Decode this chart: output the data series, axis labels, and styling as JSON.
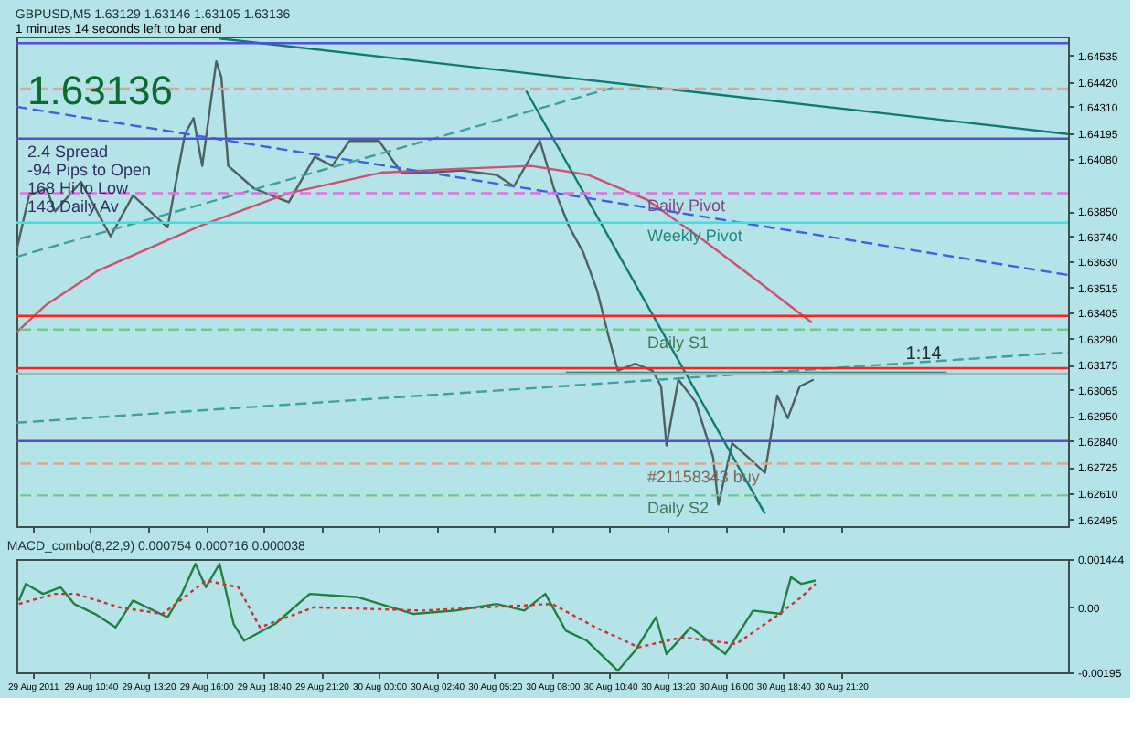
{
  "chart_data": [
    {
      "type": "line",
      "title": "GBPUSD,M5 1.63129 1.63146 1.63105 1.63136",
      "subtitle": "1 minutes 14 seconds left to bar end",
      "xlim": [
        "2011-08-29T07:15",
        "2011-08-31T07:50"
      ],
      "ylim": [
        1.62465,
        1.64619
      ],
      "xticks": [
        {
          "value": "2011-08-29T08:00",
          "label": null
        },
        {
          "value": "2011-08-29T10:40",
          "label": null
        },
        {
          "value": "2011-08-29T13:20",
          "label": null
        },
        {
          "value": "2011-08-29T16:00",
          "label": null
        },
        {
          "value": "2011-08-29T18:40",
          "label": null
        },
        {
          "value": "2011-08-29T21:20",
          "label": null
        },
        {
          "value": "2011-08-30T00:00",
          "label": null
        },
        {
          "value": "2011-08-30T02:40",
          "label": null
        },
        {
          "value": "2011-08-30T05:20",
          "label": null
        },
        {
          "value": "2011-08-30T08:00",
          "label": null
        },
        {
          "value": "2011-08-30T10:40",
          "label": null
        },
        {
          "value": "2011-08-30T13:20",
          "label": null
        },
        {
          "value": "2011-08-30T16:00",
          "label": null
        },
        {
          "value": "2011-08-30T18:40",
          "label": null
        },
        {
          "value": "2011-08-30T21:20",
          "label": null
        }
      ],
      "yticks": [
        1.64535,
        {
          "value": 1.6442,
          "label": "1.64420"
        },
        {
          "value": 1.6431,
          "label": "1.64310"
        },
        1.64195,
        {
          "value": 1.6408,
          "label": "1.64080"
        },
        {
          "value": 1.6385,
          "label": "1.63850"
        },
        {
          "value": 1.6374,
          "label": "1.63740"
        },
        {
          "value": 1.6363,
          "label": "1.63630"
        },
        1.63515,
        1.63405,
        {
          "value": 1.6329,
          "label": "1.63290"
        },
        1.63175,
        1.63065,
        {
          "value": 1.6295,
          "label": "1.62950"
        },
        {
          "value": 1.6284,
          "label": "1.62840"
        },
        1.62725,
        {
          "value": 1.6261,
          "label": "1.62610"
        },
        1.62495
      ],
      "tick_labels": "y",
      "grid": false,
      "series": [
        {
          "color": "#4f6060",
          "x": [
            "2011-08-29T07:17",
            "2011-08-29T07:50",
            "2011-08-29T08:38",
            "2011-08-29T09:02",
            "2011-08-29T10:14",
            "2011-08-29T11:36",
            "2011-08-29T12:38",
            "2011-08-29T14:14",
            "2011-08-29T15:02",
            "2011-08-29T15:26",
            "2011-08-29T15:50",
            "2011-08-29T16:29",
            "2011-08-29T16:43",
            "2011-08-29T17:02",
            "2011-08-29T18:14",
            "2011-08-29T19:50",
            "2011-08-29T21:02",
            "2011-08-29T21:50",
            "2011-08-29T22:38",
            "2011-08-30T00:00",
            "2011-08-30T01:02",
            "2011-08-30T02:14",
            "2011-08-30T03:50",
            "2011-08-30T05:26",
            "2011-08-30T06:14",
            "2011-08-30T07:26",
            "2011-08-30T08:05",
            "2011-08-30T08:48",
            "2011-08-30T09:26",
            "2011-08-30T10:05",
            "2011-08-30T10:38",
            "2011-08-30T11:02",
            "2011-08-30T11:50",
            "2011-08-30T12:38",
            "2011-08-30T13:02",
            "2011-08-30T13:17",
            "2011-08-30T13:50",
            "2011-08-30T14:38",
            "2011-08-30T15:26",
            "2011-08-30T15:41",
            "2011-08-30T16:19",
            "2011-08-30T17:02",
            "2011-08-30T17:50",
            "2011-08-30T18:24",
            "2011-08-30T18:53",
            "2011-08-30T19:26",
            "2011-08-30T20:05"
          ],
          "values": [
            1.6369,
            1.6392,
            1.6395,
            1.6385,
            1.6398,
            1.6374,
            1.6392,
            1.6378,
            1.6419,
            1.6426,
            1.6405,
            1.6451,
            1.6444,
            1.6405,
            1.6395,
            1.6389,
            1.6409,
            1.6405,
            1.6416,
            1.6416,
            1.6402,
            1.6402,
            1.6403,
            1.6401,
            1.6396,
            1.6416,
            1.6395,
            1.6378,
            1.6367,
            1.635,
            1.6329,
            1.6315,
            1.6318,
            1.6315,
            1.6308,
            1.6282,
            1.6311,
            1.6301,
            1.6277,
            1.6256,
            1.6283,
            1.6277,
            1.627,
            1.6304,
            1.6294,
            1.6308,
            1.6311
          ]
        },
        {
          "color": "#d05070",
          "x": [
            "2011-08-29T07:17",
            "2011-08-29T08:38",
            "2011-08-29T11:02",
            "2011-08-29T15:50",
            "2011-08-29T19:50",
            "2011-08-30T00:05",
            "2011-08-30T04:24",
            "2011-08-30T07:02",
            "2011-08-30T09:41",
            "2011-08-30T12:24",
            "2011-08-30T15:02",
            "2011-08-30T17:41",
            "2011-08-30T20:00"
          ],
          "values": [
            1.6332,
            1.6344,
            1.6359,
            1.6379,
            1.6393,
            1.6402,
            1.6404,
            1.6405,
            1.6401,
            1.639,
            1.6372,
            1.6353,
            1.6336
          ]
        },
        {
          "color": "#107a70",
          "x": [
            "2011-08-29T16:38",
            "2011-08-31T07:50"
          ],
          "values": [
            1.6461,
            1.6419
          ]
        },
        {
          "color": "#107a70",
          "x": [
            "2011-08-30T06:48",
            "2011-08-30T17:50"
          ],
          "values": [
            1.6438,
            1.6252
          ]
        },
        {
          "color": "#4060e0",
          "x": [
            "2011-08-29T07:15",
            "2011-08-31T07:50"
          ],
          "values": [
            1.6431,
            1.6357
          ],
          "line_style": "dashed"
        },
        {
          "color": "#40a0a0",
          "x": [
            "2011-08-29T07:15",
            "2011-08-30T11:02"
          ],
          "values": [
            1.6365,
            1.644
          ],
          "line_style": "dashed"
        },
        {
          "color": "#40a0a0",
          "x": [
            "2011-08-29T07:15",
            "2011-08-31T07:50"
          ],
          "values": [
            1.6292,
            1.6323
          ],
          "line_style": "dashed"
        },
        {
          "color": "#107a70",
          "x": [
            "2011-08-30T08:38",
            "2011-08-31T02:14"
          ],
          "values": [
            1.6314,
            1.6314
          ]
        }
      ],
      "ref_lines": [
        {
          "axis": "y",
          "value": 1.6459,
          "color": "#5050d0"
        },
        {
          "axis": "y",
          "value": 1.6439,
          "color": "#d8a890",
          "line_style": "dashed"
        },
        {
          "axis": "y",
          "value": 1.6417,
          "color": "#5050d0"
        },
        {
          "axis": "y",
          "value": 1.6393,
          "label": "Daily Pivot",
          "color": "#e070e0",
          "line_style": "dashed"
        },
        {
          "axis": "y",
          "value": 1.638,
          "label": "Weekly Pivot",
          "color": "#40e0e0"
        },
        {
          "axis": "y",
          "value": 1.6339,
          "color": "#ff2020"
        },
        {
          "axis": "y",
          "value": 1.6333,
          "label": "Daily S1",
          "color": "#70c890",
          "line_style": "dashed"
        },
        {
          "axis": "y",
          "value": 1.6316,
          "color": "#ff2020"
        },
        {
          "axis": "y",
          "value": 1.63136,
          "color": "#a0b8b8"
        },
        {
          "axis": "y",
          "value": 1.6284,
          "color": "#5050d0"
        },
        {
          "axis": "y",
          "value": 1.6274,
          "label": "#21158343 buy",
          "color": "#d8a890",
          "line_style": "dashed"
        },
        {
          "axis": "y",
          "value": 1.626,
          "label": "Daily S2",
          "color": "#70c890",
          "line_style": "dashed"
        }
      ],
      "annotations": [
        "1.63136",
        "2.4 Spread",
        "-94 Pips to Open",
        "168 Hi to Low",
        "143 Daily Av",
        {
          "text": "1:14",
          "x": "2011-08-31T00:00",
          "y": 1.6316
        }
      ]
    },
    {
      "type": "line",
      "title": "MACD_combo(8,22,9) 0.000754 0.000716 0.000038",
      "xlim": [
        "2011-08-29T07:15",
        "2011-08-31T07:50"
      ],
      "ylim": [
        -0.00195,
        0.001444
      ],
      "xticks": [
        {
          "value": "2011-08-29T08:00",
          "label": "29 Aug 2011"
        },
        {
          "value": "2011-08-29T10:40",
          "label": "29 Aug 10:40"
        },
        {
          "value": "2011-08-29T13:20",
          "label": "29 Aug 13:20"
        },
        {
          "value": "2011-08-29T16:00",
          "label": "29 Aug 16:00"
        },
        {
          "value": "2011-08-29T18:40",
          "label": "29 Aug 18:40"
        },
        {
          "value": "2011-08-29T21:20",
          "label": "29 Aug 21:20"
        },
        {
          "value": "2011-08-30T00:00",
          "label": "30 Aug 00:00"
        },
        {
          "value": "2011-08-30T02:40",
          "label": "30 Aug 02:40"
        },
        {
          "value": "2011-08-30T05:20",
          "label": "30 Aug 05:20"
        },
        {
          "value": "2011-08-30T08:00",
          "label": "30 Aug 08:00"
        },
        {
          "value": "2011-08-30T10:40",
          "label": "30 Aug 10:40"
        },
        {
          "value": "2011-08-30T13:20",
          "label": "30 Aug 13:20"
        },
        {
          "value": "2011-08-30T16:00",
          "label": "30 Aug 16:00"
        },
        {
          "value": "2011-08-30T18:40",
          "label": "30 Aug 18:40"
        },
        {
          "value": "2011-08-30T21:20",
          "label": "30 Aug 21:20"
        }
      ],
      "yticks": [
        -0.00195,
        {
          "value": 0,
          "label": "0.00"
        },
        0.001444
      ],
      "grid": false,
      "series": [
        {
          "color": "#208040",
          "x": [
            "2011-08-29T07:22",
            "2011-08-29T07:41",
            "2011-08-29T08:29",
            "2011-08-29T09:17",
            "2011-08-29T09:55",
            "2011-08-29T10:53",
            "2011-08-29T11:50",
            "2011-08-29T12:38",
            "2011-08-29T14:14",
            "2011-08-29T14:53",
            "2011-08-29T15:31",
            "2011-08-29T16:00",
            "2011-08-29T16:38",
            "2011-08-29T17:17",
            "2011-08-29T17:46",
            "2011-08-29T19:12",
            "2011-08-29T20:48",
            "2011-08-29T23:02",
            "2011-08-30T01:36",
            "2011-08-30T03:31",
            "2011-08-30T05:26",
            "2011-08-30T06:43",
            "2011-08-30T07:41",
            "2011-08-30T08:38",
            "2011-08-30T09:36",
            "2011-08-30T11:02",
            "2011-08-30T11:50",
            "2011-08-30T12:48",
            "2011-08-30T13:17",
            "2011-08-30T14:24",
            "2011-08-30T16:00",
            "2011-08-30T17:17",
            "2011-08-30T18:34",
            "2011-08-30T19:02",
            "2011-08-30T19:31",
            "2011-08-30T20:10"
          ],
          "values": [
            0.0002,
            0.0007,
            0.0004,
            0.0006,
            0.0001,
            -0.0002,
            -0.0006,
            0.0002,
            -0.0003,
            0.0004,
            0.0013,
            0.0006,
            0.0013,
            -0.0005,
            -0.001,
            -0.0005,
            0.0004,
            0.0003,
            -0.0002,
            -0.0001,
            0.0001,
            -0.0001,
            0.0004,
            -0.0007,
            -0.001,
            -0.0019,
            -0.0013,
            -0.0003,
            -0.0014,
            -0.0006,
            -0.0014,
            -0.0001,
            -0.0002,
            0.0009,
            0.0007,
            0.0008
          ]
        },
        {
          "color": "#d03030",
          "line_style": "dotted",
          "x": [
            "2011-08-29T07:22",
            "2011-08-29T09:00",
            "2011-08-29T10:00",
            "2011-08-29T12:00",
            "2011-08-29T14:00",
            "2011-08-29T16:00",
            "2011-08-29T17:30",
            "2011-08-29T18:30",
            "2011-08-29T21:00",
            "2011-08-30T02:00",
            "2011-08-30T08:00",
            "2011-08-30T10:00",
            "2011-08-30T12:00",
            "2011-08-30T14:00",
            "2011-08-30T16:30",
            "2011-08-30T18:30",
            "2011-08-30T19:30",
            "2011-08-30T20:10"
          ],
          "values": [
            0.0001,
            0.0004,
            0.0004,
            0.0,
            -0.0002,
            0.0008,
            0.0006,
            -0.0006,
            0.0,
            -0.0001,
            0.0001,
            -0.0006,
            -0.0012,
            -0.0009,
            -0.0011,
            -0.0002,
            0.0003,
            0.0007
          ]
        }
      ]
    }
  ]
}
